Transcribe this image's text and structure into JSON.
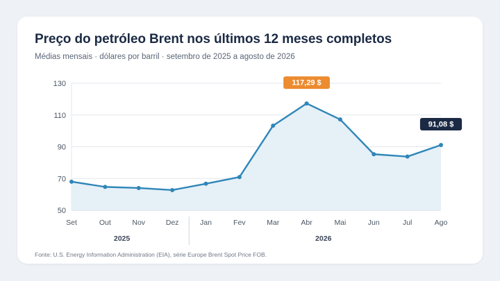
{
  "title": "Preço do petróleo Brent nos últimos 12 meses completos",
  "subtitle": "Médias mensais · dólares por barril · setembro de 2025 a agosto de 2026",
  "source": "Fonte: U.S. Energy Information Administration (EIA), série Europe Brent Spot Price FOB.",
  "colors": {
    "line": "#2f86b8",
    "area": "#e6f0f7",
    "peak_badge": "#ec8b2f",
    "last_badge": "#1b2a44",
    "grid": "#e3e7ec",
    "axis_text": "#4a5563"
  },
  "chart_data": {
    "type": "area",
    "categories": [
      "Set",
      "Out",
      "Nov",
      "Dez",
      "Jan",
      "Fev",
      "Mar",
      "Abr",
      "Mai",
      "Jun",
      "Jul",
      "Ago"
    ],
    "year_groups": [
      {
        "label": "2025",
        "months": [
          "Set",
          "Out",
          "Nov",
          "Dez"
        ]
      },
      {
        "label": "2026",
        "months": [
          "Jan",
          "Fev",
          "Mar",
          "Abr",
          "Mai",
          "Jun",
          "Jul",
          "Ago"
        ]
      }
    ],
    "series": [
      {
        "values": [
          68.0,
          64.7,
          64.0,
          62.7,
          66.7,
          70.9,
          103.3,
          117.29,
          107.2,
          85.3,
          83.8,
          91.08
        ]
      }
    ],
    "ylim": [
      50,
      130
    ],
    "yticks": [
      "50",
      "70",
      "90",
      "110",
      "130"
    ],
    "grid": true,
    "annotations": [
      {
        "month": "Abr",
        "value": 117.29,
        "label": "117,29 $",
        "style": "peak"
      },
      {
        "month": "Ago",
        "value": 91.08,
        "label": "91,08 $",
        "style": "last"
      }
    ]
  }
}
